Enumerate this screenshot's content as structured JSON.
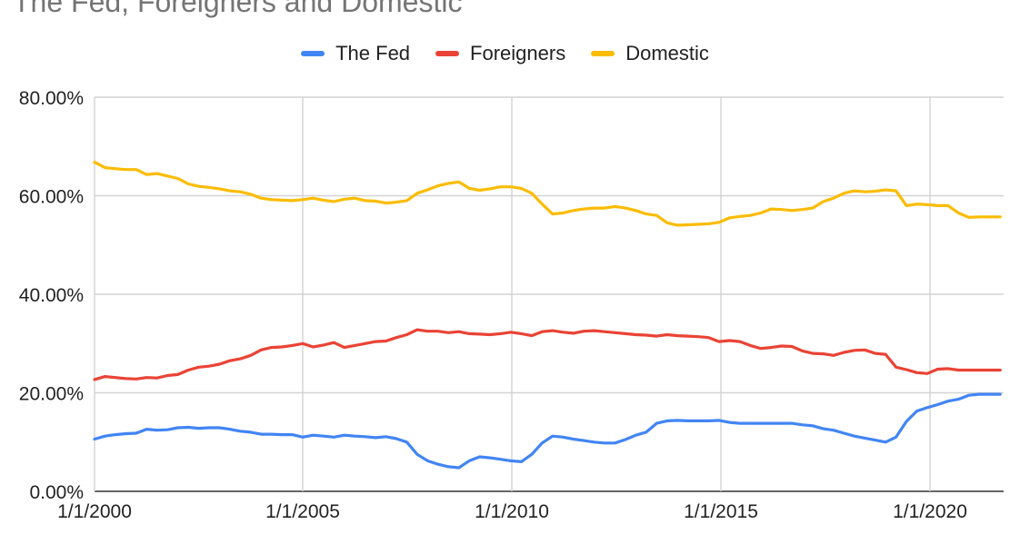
{
  "chart_data": {
    "type": "line",
    "title": "The Fed, Foreigners and Domestic",
    "xlabel": "",
    "ylabel": "",
    "x_ticks": [
      "1/1/2000",
      "1/1/2005",
      "1/1/2010",
      "1/1/2015",
      "1/1/2020"
    ],
    "y_ticks": [
      "0.00%",
      "20.00%",
      "40.00%",
      "60.00%",
      "80.00%"
    ],
    "ylim": [
      0,
      80
    ],
    "xlim": [
      2000.0,
      2021.75
    ],
    "grid": true,
    "legend_position": "top",
    "series": [
      {
        "name": "The Fed",
        "color": "#4285f4",
        "x": [
          2000.0,
          2000.25,
          2000.5,
          2000.75,
          2001.0,
          2001.25,
          2001.5,
          2001.75,
          2002.0,
          2002.25,
          2002.5,
          2002.75,
          2003.0,
          2003.25,
          2003.5,
          2003.75,
          2004.0,
          2004.25,
          2004.5,
          2004.75,
          2005.0,
          2005.25,
          2005.5,
          2005.75,
          2006.0,
          2006.25,
          2006.5,
          2006.75,
          2007.0,
          2007.25,
          2007.5,
          2007.75,
          2008.0,
          2008.25,
          2008.5,
          2008.75,
          2009.0,
          2009.25,
          2009.5,
          2009.75,
          2010.0,
          2010.25,
          2010.5,
          2010.75,
          2011.0,
          2011.25,
          2011.5,
          2011.75,
          2012.0,
          2012.25,
          2012.5,
          2012.75,
          2013.0,
          2013.25,
          2013.5,
          2013.75,
          2014.0,
          2014.25,
          2014.5,
          2014.75,
          2015.0,
          2015.25,
          2015.5,
          2015.75,
          2016.0,
          2016.25,
          2016.5,
          2016.75,
          2017.0,
          2017.25,
          2017.5,
          2017.75,
          2018.0,
          2018.25,
          2018.5,
          2018.75,
          2019.0,
          2019.25,
          2019.5,
          2019.75,
          2020.0,
          2020.25,
          2020.5,
          2020.75,
          2021.0,
          2021.25,
          2021.5,
          2021.75
        ],
        "values": [
          10.6,
          11.2,
          11.5,
          11.7,
          11.8,
          12.6,
          12.4,
          12.5,
          12.9,
          13.0,
          12.8,
          12.9,
          12.9,
          12.6,
          12.2,
          12.0,
          11.6,
          11.6,
          11.5,
          11.5,
          11.0,
          11.4,
          11.2,
          11.0,
          11.4,
          11.2,
          11.1,
          10.9,
          11.1,
          10.7,
          10.0,
          7.5,
          6.2,
          5.5,
          5.0,
          4.8,
          6.2,
          7.0,
          6.8,
          6.5,
          6.2,
          6.0,
          7.5,
          9.8,
          11.2,
          11.0,
          10.6,
          10.3,
          10.0,
          9.8,
          9.8,
          10.5,
          11.4,
          12.0,
          13.8,
          14.3,
          14.4,
          14.3,
          14.3,
          14.3,
          14.4,
          14.0,
          13.8,
          13.8,
          13.8,
          13.8,
          13.8,
          13.8,
          13.5,
          13.3,
          12.7,
          12.4,
          11.8,
          11.2,
          10.8,
          10.4,
          10.0,
          11.0,
          14.2,
          16.3,
          17.0,
          17.6,
          18.3,
          18.7,
          19.5,
          19.7,
          19.7,
          19.7
        ]
      },
      {
        "name": "Foreigners",
        "color": "#ea4335",
        "x": [
          2000.0,
          2000.25,
          2000.5,
          2000.75,
          2001.0,
          2001.25,
          2001.5,
          2001.75,
          2002.0,
          2002.25,
          2002.5,
          2002.75,
          2003.0,
          2003.25,
          2003.5,
          2003.75,
          2004.0,
          2004.25,
          2004.5,
          2004.75,
          2005.0,
          2005.25,
          2005.5,
          2005.75,
          2006.0,
          2006.25,
          2006.5,
          2006.75,
          2007.0,
          2007.25,
          2007.5,
          2007.75,
          2008.0,
          2008.25,
          2008.5,
          2008.75,
          2009.0,
          2009.25,
          2009.5,
          2009.75,
          2010.0,
          2010.25,
          2010.5,
          2010.75,
          2011.0,
          2011.25,
          2011.5,
          2011.75,
          2012.0,
          2012.25,
          2012.5,
          2012.75,
          2013.0,
          2013.25,
          2013.5,
          2013.75,
          2014.0,
          2014.25,
          2014.5,
          2014.75,
          2015.0,
          2015.25,
          2015.5,
          2015.75,
          2016.0,
          2016.25,
          2016.5,
          2016.75,
          2017.0,
          2017.25,
          2017.5,
          2017.75,
          2018.0,
          2018.25,
          2018.5,
          2018.75,
          2019.0,
          2019.25,
          2019.5,
          2019.75,
          2020.0,
          2020.25,
          2020.5,
          2020.75,
          2021.0,
          2021.25,
          2021.5,
          2021.75
        ],
        "values": [
          22.7,
          23.3,
          23.1,
          22.9,
          22.8,
          23.1,
          23.0,
          23.5,
          23.7,
          24.6,
          25.2,
          25.4,
          25.8,
          26.5,
          26.9,
          27.6,
          28.7,
          29.2,
          29.3,
          29.6,
          30.0,
          29.3,
          29.7,
          30.2,
          29.2,
          29.6,
          30.0,
          30.4,
          30.5,
          31.2,
          31.8,
          32.8,
          32.5,
          32.5,
          32.2,
          32.4,
          32.0,
          31.9,
          31.8,
          32.0,
          32.3,
          32.0,
          31.6,
          32.4,
          32.6,
          32.3,
          32.1,
          32.5,
          32.6,
          32.4,
          32.2,
          32.0,
          31.8,
          31.7,
          31.5,
          31.8,
          31.6,
          31.5,
          31.4,
          31.2,
          30.4,
          30.6,
          30.4,
          29.6,
          29.0,
          29.2,
          29.5,
          29.4,
          28.5,
          28.0,
          27.9,
          27.6,
          28.2,
          28.6,
          28.7,
          28.0,
          27.8,
          25.2,
          24.7,
          24.1,
          23.9,
          24.8,
          24.9,
          24.6,
          24.6,
          24.6,
          24.6,
          24.6
        ]
      },
      {
        "name": "Domestic",
        "color": "#fbbc04",
        "x": [
          2000.0,
          2000.25,
          2000.5,
          2000.75,
          2001.0,
          2001.25,
          2001.5,
          2001.75,
          2002.0,
          2002.25,
          2002.5,
          2002.75,
          2003.0,
          2003.25,
          2003.5,
          2003.75,
          2004.0,
          2004.25,
          2004.5,
          2004.75,
          2005.0,
          2005.25,
          2005.5,
          2005.75,
          2006.0,
          2006.25,
          2006.5,
          2006.75,
          2007.0,
          2007.25,
          2007.5,
          2007.75,
          2008.0,
          2008.25,
          2008.5,
          2008.75,
          2009.0,
          2009.25,
          2009.5,
          2009.75,
          2010.0,
          2010.25,
          2010.5,
          2010.75,
          2011.0,
          2011.25,
          2011.5,
          2011.75,
          2012.0,
          2012.25,
          2012.5,
          2012.75,
          2013.0,
          2013.25,
          2013.5,
          2013.75,
          2014.0,
          2014.25,
          2014.5,
          2014.75,
          2015.0,
          2015.25,
          2015.5,
          2015.75,
          2016.0,
          2016.25,
          2016.5,
          2016.75,
          2017.0,
          2017.25,
          2017.5,
          2017.75,
          2018.0,
          2018.25,
          2018.5,
          2018.75,
          2019.0,
          2019.25,
          2019.5,
          2019.75,
          2020.0,
          2020.25,
          2020.5,
          2020.75,
          2021.0,
          2021.25,
          2021.5,
          2021.75
        ],
        "values": [
          66.8,
          65.7,
          65.5,
          65.3,
          65.3,
          64.3,
          64.5,
          64.0,
          63.5,
          62.4,
          61.9,
          61.7,
          61.4,
          61.0,
          60.8,
          60.3,
          59.5,
          59.2,
          59.1,
          59.0,
          59.2,
          59.5,
          59.1,
          58.8,
          59.3,
          59.5,
          59.0,
          58.9,
          58.5,
          58.7,
          59.0,
          60.5,
          61.2,
          62.0,
          62.5,
          62.8,
          61.5,
          61.1,
          61.4,
          61.8,
          61.8,
          61.5,
          60.5,
          58.3,
          56.3,
          56.5,
          57.0,
          57.3,
          57.5,
          57.5,
          57.8,
          57.5,
          57.0,
          56.3,
          56.0,
          54.5,
          54.0,
          54.1,
          54.2,
          54.3,
          54.6,
          55.5,
          55.8,
          56.0,
          56.5,
          57.3,
          57.2,
          57.0,
          57.2,
          57.5,
          58.8,
          59.5,
          60.5,
          61.0,
          60.8,
          60.9,
          61.2,
          61.0,
          58.0,
          58.3,
          58.2,
          58.0,
          58.0,
          56.5,
          55.6,
          55.7,
          55.7,
          55.7
        ]
      }
    ]
  }
}
